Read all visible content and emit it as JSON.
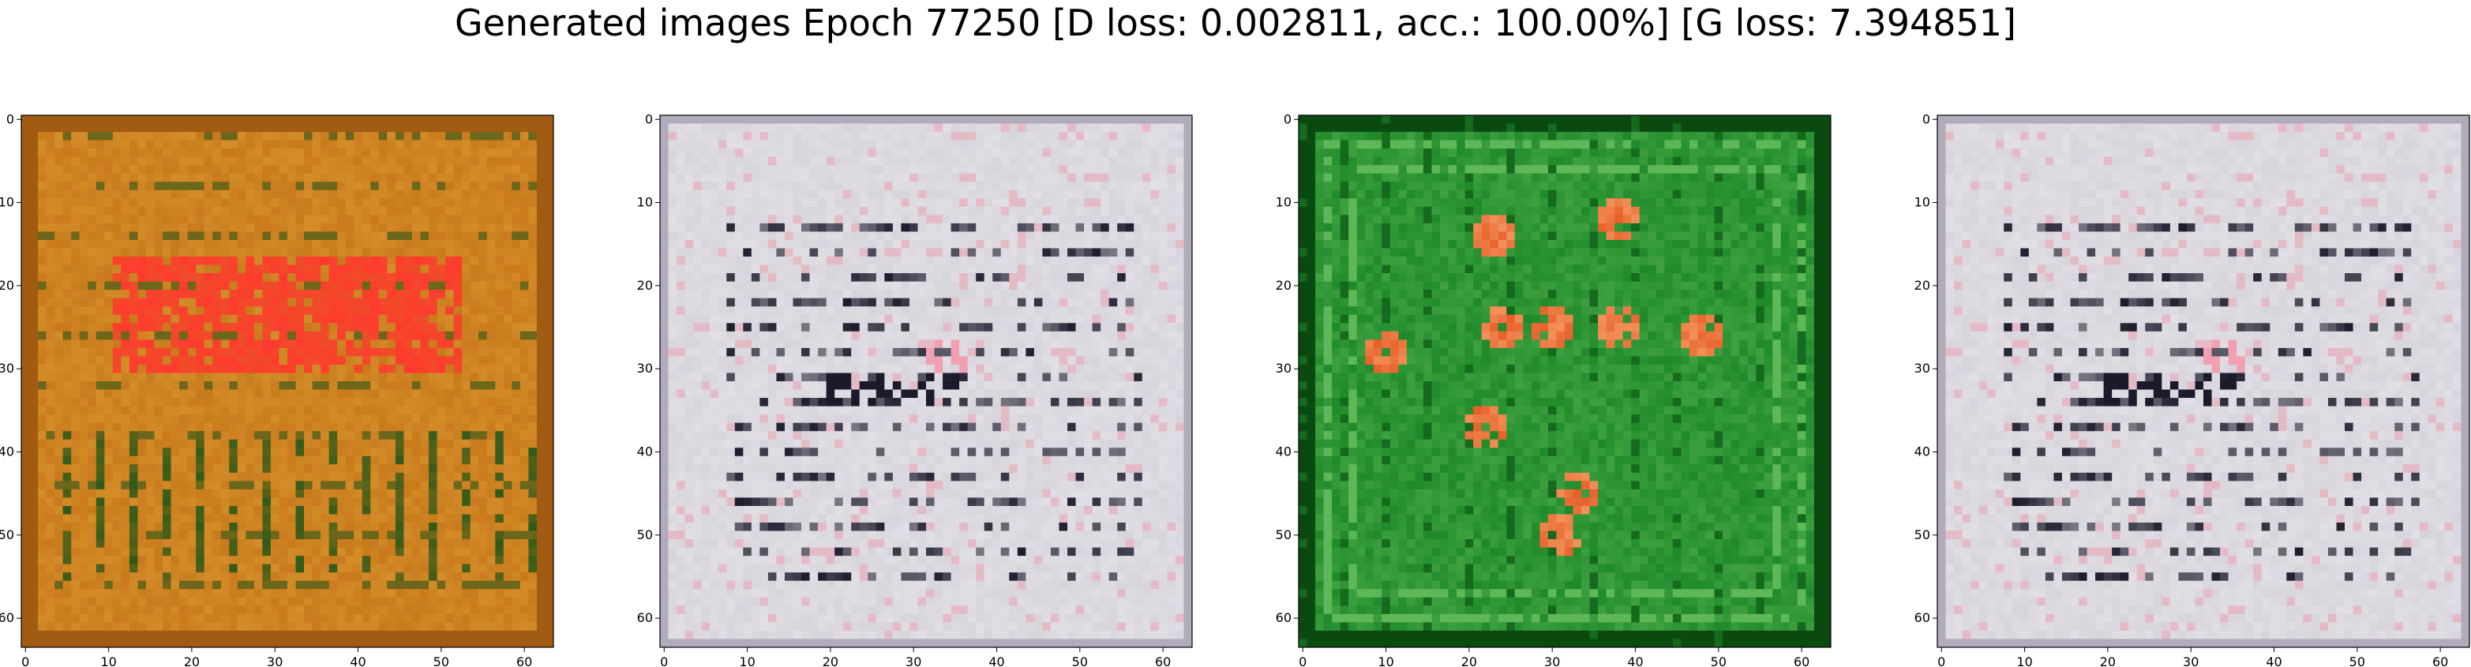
{
  "figure": {
    "title": "Generated images Epoch 77250 [D loss: 0.002811, acc.: 100.00%] [G loss: 7.394851]"
  },
  "chart_data": [
    {
      "type": "heatmap",
      "image_palette": "orange-brown background with red and dark green structures",
      "colors": {
        "base": "#c97a1c",
        "accent": "#ff3a2e",
        "dark": "#2f5a1a",
        "light": "#e8b040"
      },
      "xlim": [
        0,
        63
      ],
      "ylim": [
        0,
        63
      ],
      "x_ticks": [
        0,
        10,
        20,
        30,
        40,
        50,
        60
      ],
      "y_ticks": [
        0,
        10,
        20,
        30,
        40,
        50,
        60
      ],
      "grid": false,
      "legend": "none"
    },
    {
      "type": "heatmap",
      "image_palette": "light grey-white with dark horizontal stripes and pinkish noise",
      "colors": {
        "base": "#d8d4dc",
        "accent": "#f0a0b0",
        "dark": "#1a1a2a",
        "light": "#f2f0f4"
      },
      "xlim": [
        0,
        63
      ],
      "ylim": [
        0,
        63
      ],
      "x_ticks": [
        0,
        10,
        20,
        30,
        40,
        50,
        60
      ],
      "y_ticks": [
        0,
        10,
        20,
        30,
        40,
        50,
        60
      ],
      "grid": false,
      "legend": "none"
    },
    {
      "type": "heatmap",
      "image_palette": "green field with scattered orange-red blobs and light lines",
      "colors": {
        "base": "#1f8a2a",
        "accent": "#e8602a",
        "dark": "#0a4a10",
        "light": "#7acb6a"
      },
      "xlim": [
        0,
        63
      ],
      "ylim": [
        0,
        63
      ],
      "x_ticks": [
        0,
        10,
        20,
        30,
        40,
        50,
        60
      ],
      "y_ticks": [
        0,
        10,
        20,
        30,
        40,
        50,
        60
      ],
      "grid": false,
      "legend": "none"
    },
    {
      "type": "heatmap",
      "image_palette": "light grey-white with dark horizontal stripes and pinkish noise",
      "colors": {
        "base": "#d8d4dc",
        "accent": "#f0a0b0",
        "dark": "#1a1a2a",
        "light": "#f2f0f4"
      },
      "xlim": [
        0,
        63
      ],
      "ylim": [
        0,
        63
      ],
      "x_ticks": [
        0,
        10,
        20,
        30,
        40,
        50,
        60
      ],
      "y_ticks": [
        0,
        10,
        20,
        30,
        40,
        50,
        60
      ],
      "grid": false,
      "legend": "none"
    }
  ]
}
